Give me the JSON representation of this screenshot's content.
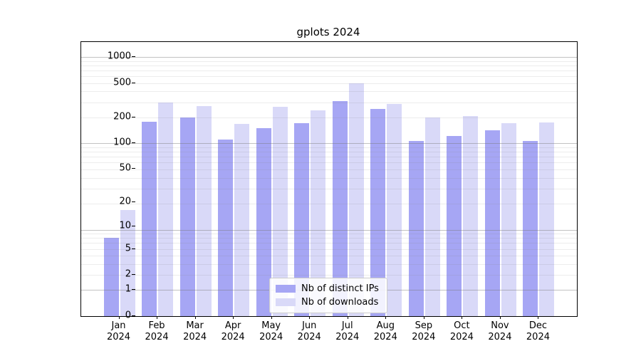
{
  "title": "gplots 2024",
  "chart_data": {
    "type": "bar",
    "title": "gplots 2024",
    "categories": [
      "Jan",
      "Feb",
      "Mar",
      "Apr",
      "May",
      "Jun",
      "Jul",
      "Aug",
      "Sep",
      "Oct",
      "Nov",
      "Dec"
    ],
    "category_year": "2024",
    "series": [
      {
        "name": "Nb of distinct IPs",
        "color": "#a6a6f4",
        "values": [
          7,
          177,
          198,
          110,
          149,
          172,
          306,
          251,
          105,
          122,
          140,
          106
        ]
      },
      {
        "name": "Nb of downloads",
        "color": "#d9d9f8",
        "values": [
          16,
          296,
          272,
          168,
          262,
          240,
          497,
          283,
          197,
          208,
          169,
          175
        ]
      }
    ],
    "yticks": [
      0,
      1,
      2,
      5,
      10,
      20,
      50,
      100,
      200,
      500,
      1000
    ],
    "scale": "log10(1+x)",
    "ylim": [
      0,
      1500
    ],
    "grid": true,
    "legend_position": "lower center"
  }
}
